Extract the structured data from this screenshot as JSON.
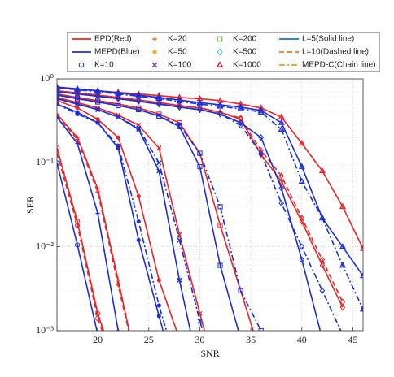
{
  "chart_data": {
    "type": "line",
    "xlabel": "SNR",
    "ylabel": "SER",
    "xlim": [
      16,
      46
    ],
    "xticks": [
      20,
      25,
      30,
      35,
      40,
      45
    ],
    "ylim": [
      0.001,
      1
    ],
    "yticks": [
      {
        "value": 0.001,
        "label": "10⁻³"
      },
      {
        "value": 0.01,
        "label": "10⁻²"
      },
      {
        "value": 0.1,
        "label": "10⁻¹"
      },
      {
        "value": 1,
        "label": "10⁰"
      }
    ],
    "log_y": true,
    "grid": true,
    "x": [
      16,
      18,
      20,
      22,
      24,
      26,
      28,
      30,
      32,
      34,
      36,
      38,
      40,
      42,
      44,
      46
    ],
    "legend": [
      {
        "label": "EPD(Red)",
        "color": "#e8262a",
        "line_style": "solid"
      },
      {
        "label": "MEPD(Blue)",
        "color": "#1b2fd4",
        "line_style": "solid"
      },
      {
        "label": "K=10",
        "color": "#1b2fd4",
        "marker": "o"
      },
      {
        "label": "K=20",
        "color": "#e8742a",
        "marker": "+"
      },
      {
        "label": "K=50",
        "color": "#f0b020",
        "marker": "dot"
      },
      {
        "label": "K=100",
        "color": "#7e2f8e",
        "marker": "x"
      },
      {
        "label": "K=200",
        "color": "#60b030",
        "marker": "s"
      },
      {
        "label": "K=500",
        "color": "#30c0e8",
        "marker": "d"
      },
      {
        "label": "K=1000",
        "color": "#c0202a",
        "marker": "^"
      },
      {
        "label": "L=5(Solid line)",
        "color": "#1b70c0",
        "line_style": "solid"
      },
      {
        "label": "L=10(Dashed line)",
        "color": "#e8742a",
        "line_style": "dashed"
      },
      {
        "label": "MEPD-C(Chain line)",
        "color": "#e0a020",
        "line_style": "dashdot"
      }
    ],
    "series": [
      {
        "color": "#e8262a",
        "line_style": "solid",
        "marker": "o",
        "values": [
          0.15,
          0.02,
          0.0016,
          0.0003,
          null,
          null,
          null,
          null,
          null,
          null,
          null,
          null,
          null,
          null,
          null,
          null
        ]
      },
      {
        "color": "#e8262a",
        "line_style": "dashed",
        "marker": "o",
        "values": [
          0.13,
          0.018,
          0.0014,
          0.0003,
          null,
          null,
          null,
          null,
          null,
          null,
          null,
          null,
          null,
          null,
          null,
          null
        ]
      },
      {
        "color": "#1b2fd4",
        "line_style": "solid",
        "marker": "o",
        "values": [
          0.1,
          0.0105,
          0.0009,
          null,
          null,
          null,
          null,
          null,
          null,
          null,
          null,
          null,
          null,
          null,
          null,
          null
        ]
      },
      {
        "color": "#e8262a",
        "line_style": "solid",
        "marker": "+",
        "values": [
          0.38,
          0.2,
          0.049,
          0.004,
          0.0003,
          null,
          null,
          null,
          null,
          null,
          null,
          null,
          null,
          null,
          null,
          null
        ]
      },
      {
        "color": "#e8262a",
        "line_style": "dashed",
        "marker": "+",
        "values": [
          0.36,
          0.19,
          0.045,
          0.0035,
          0.0003,
          null,
          null,
          null,
          null,
          null,
          null,
          null,
          null,
          null,
          null,
          null
        ]
      },
      {
        "color": "#1b2fd4",
        "line_style": "solid",
        "marker": "+",
        "values": [
          0.35,
          0.17,
          0.025,
          0.001,
          null,
          null,
          null,
          null,
          null,
          null,
          null,
          null,
          null,
          null,
          null,
          null
        ]
      },
      {
        "color": "#e8262a",
        "line_style": "solid",
        "marker": "dot",
        "values": [
          0.55,
          0.45,
          0.33,
          0.2,
          0.04,
          0.004,
          0.0008,
          null,
          null,
          null,
          null,
          null,
          null,
          null,
          null,
          null
        ]
      },
      {
        "color": "#1b2fd4",
        "line_style": "solid",
        "marker": "dot",
        "values": [
          0.5,
          0.4,
          0.3,
          0.15,
          0.012,
          0.0015,
          0.0002,
          null,
          null,
          null,
          null,
          null,
          null,
          null,
          null,
          null
        ]
      },
      {
        "color": "#1b2fd4",
        "line_style": "dashdot",
        "marker": "dot",
        "values": [
          0.5,
          0.38,
          0.3,
          0.16,
          0.02,
          0.002,
          0.0003,
          null,
          null,
          null,
          null,
          null,
          null,
          null,
          null,
          null
        ]
      },
      {
        "color": "#e8262a",
        "line_style": "solid",
        "marker": "x",
        "values": [
          0.6,
          0.52,
          0.45,
          0.37,
          0.28,
          0.15,
          0.014,
          0.0016,
          0.0002,
          null,
          null,
          null,
          null,
          null,
          null,
          null
        ]
      },
      {
        "color": "#1b2fd4",
        "line_style": "solid",
        "marker": "x",
        "values": [
          0.58,
          0.5,
          0.43,
          0.35,
          0.25,
          0.08,
          0.004,
          0.0003,
          null,
          null,
          null,
          null,
          null,
          null,
          null,
          null
        ]
      },
      {
        "color": "#1b2fd4",
        "line_style": "dashdot",
        "marker": "x",
        "values": [
          0.58,
          0.5,
          0.43,
          0.35,
          0.26,
          0.1,
          0.012,
          0.0013,
          0.0002,
          null,
          null,
          null,
          null,
          null,
          null,
          null
        ]
      },
      {
        "color": "#e8262a",
        "line_style": "solid",
        "marker": "s",
        "values": [
          0.66,
          0.6,
          0.55,
          0.5,
          0.45,
          0.38,
          0.3,
          0.13,
          0.018,
          0.003,
          0.0005,
          null,
          null,
          null,
          null,
          null
        ]
      },
      {
        "color": "#1b2fd4",
        "line_style": "solid",
        "marker": "s",
        "values": [
          0.64,
          0.58,
          0.53,
          0.48,
          0.43,
          0.36,
          0.27,
          0.09,
          0.006,
          0.0008,
          null,
          null,
          null,
          null,
          null,
          null
        ]
      },
      {
        "color": "#1b2fd4",
        "line_style": "dashdot",
        "marker": "s",
        "values": [
          0.64,
          0.58,
          0.53,
          0.48,
          0.43,
          0.36,
          0.28,
          0.13,
          0.03,
          0.003,
          0.001,
          0.0002,
          null,
          null,
          null,
          null
        ]
      },
      {
        "color": "#e8262a",
        "line_style": "solid",
        "marker": "d",
        "values": [
          0.72,
          0.68,
          0.64,
          0.6,
          0.56,
          0.52,
          0.48,
          0.45,
          0.4,
          0.33,
          0.125,
          0.06,
          0.02,
          0.006,
          0.0019,
          null
        ]
      },
      {
        "color": "#e8262a",
        "line_style": "dashed",
        "marker": "d",
        "values": [
          0.72,
          0.68,
          0.64,
          0.6,
          0.56,
          0.52,
          0.48,
          0.45,
          0.4,
          0.34,
          0.14,
          0.07,
          0.022,
          0.007,
          0.0022,
          null
        ]
      },
      {
        "color": "#1b2fd4",
        "line_style": "solid",
        "marker": "d",
        "values": [
          0.7,
          0.66,
          0.62,
          0.58,
          0.54,
          0.5,
          0.46,
          0.43,
          0.38,
          0.3,
          0.2,
          0.05,
          0.007,
          0.0008,
          null,
          null
        ]
      },
      {
        "color": "#1b2fd4",
        "line_style": "dashdot",
        "marker": "d",
        "values": [
          0.7,
          0.66,
          0.62,
          0.58,
          0.54,
          0.5,
          0.46,
          0.43,
          0.38,
          0.28,
          0.13,
          0.033,
          0.01,
          0.003,
          0.0009,
          null
        ]
      },
      {
        "color": "#e8262a",
        "line_style": "solid",
        "marker": "^",
        "values": [
          0.78,
          0.75,
          0.72,
          0.69,
          0.66,
          0.63,
          0.6,
          0.58,
          0.55,
          0.5,
          0.45,
          0.35,
          0.17,
          0.08,
          0.03,
          0.0095
        ]
      },
      {
        "color": "#1b2fd4",
        "line_style": "solid",
        "marker": "^",
        "values": [
          0.8,
          0.76,
          0.72,
          0.68,
          0.64,
          0.6,
          0.56,
          0.52,
          0.49,
          0.46,
          0.42,
          0.3,
          0.09,
          0.022,
          0.01,
          0.0045
        ]
      },
      {
        "color": "#1b2fd4",
        "line_style": "dashdot",
        "marker": "^",
        "values": [
          0.78,
          0.74,
          0.7,
          0.66,
          0.62,
          0.58,
          0.54,
          0.5,
          0.47,
          0.44,
          0.4,
          0.25,
          0.06,
          0.022,
          0.006,
          0.0018
        ]
      }
    ]
  }
}
